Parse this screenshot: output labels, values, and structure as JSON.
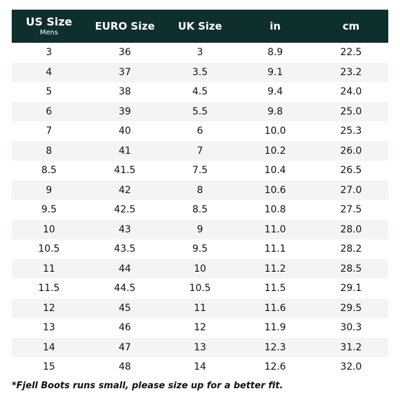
{
  "table": {
    "columns": [
      {
        "label": "US Size",
        "sub": "Mens"
      },
      {
        "label": "EURO Size",
        "sub": ""
      },
      {
        "label": "UK Size",
        "sub": ""
      },
      {
        "label": "in",
        "sub": ""
      },
      {
        "label": "cm",
        "sub": ""
      }
    ],
    "rows": [
      [
        "3",
        "36",
        "3",
        "8.9",
        "22.5"
      ],
      [
        "4",
        "37",
        "3.5",
        "9.1",
        "23.2"
      ],
      [
        "5",
        "38",
        "4.5",
        "9.4",
        "24.0"
      ],
      [
        "6",
        "39",
        "5.5",
        "9.8",
        "25.0"
      ],
      [
        "7",
        "40",
        "6",
        "10.0",
        "25.3"
      ],
      [
        "8",
        "41",
        "7",
        "10.2",
        "26.0"
      ],
      [
        "8.5",
        "41.5",
        "7.5",
        "10.4",
        "26.5"
      ],
      [
        "9",
        "42",
        "8",
        "10.6",
        "27.0"
      ],
      [
        "9.5",
        "42.5",
        "8.5",
        "10.8",
        "27.5"
      ],
      [
        "10",
        "43",
        "9",
        "11.0",
        "28.0"
      ],
      [
        "10.5",
        "43.5",
        "9.5",
        "11.1",
        "28.2"
      ],
      [
        "11",
        "44",
        "10",
        "11.2",
        "28.5"
      ],
      [
        "11.5",
        "44.5",
        "10.5",
        "11.5",
        "29.1"
      ],
      [
        "12",
        "45",
        "11",
        "11.6",
        "29.5"
      ],
      [
        "13",
        "46",
        "12",
        "11.9",
        "30.3"
      ],
      [
        "14",
        "47",
        "13",
        "12.3",
        "31.2"
      ],
      [
        "15",
        "48",
        "14",
        "12.6",
        "32.0"
      ]
    ]
  },
  "footnote": "*Fjell Boots runs small, please size up for a better fit.",
  "colors": {
    "header_bg": "#0f2e2e",
    "row_alt_bg": "#f3f4f4"
  }
}
